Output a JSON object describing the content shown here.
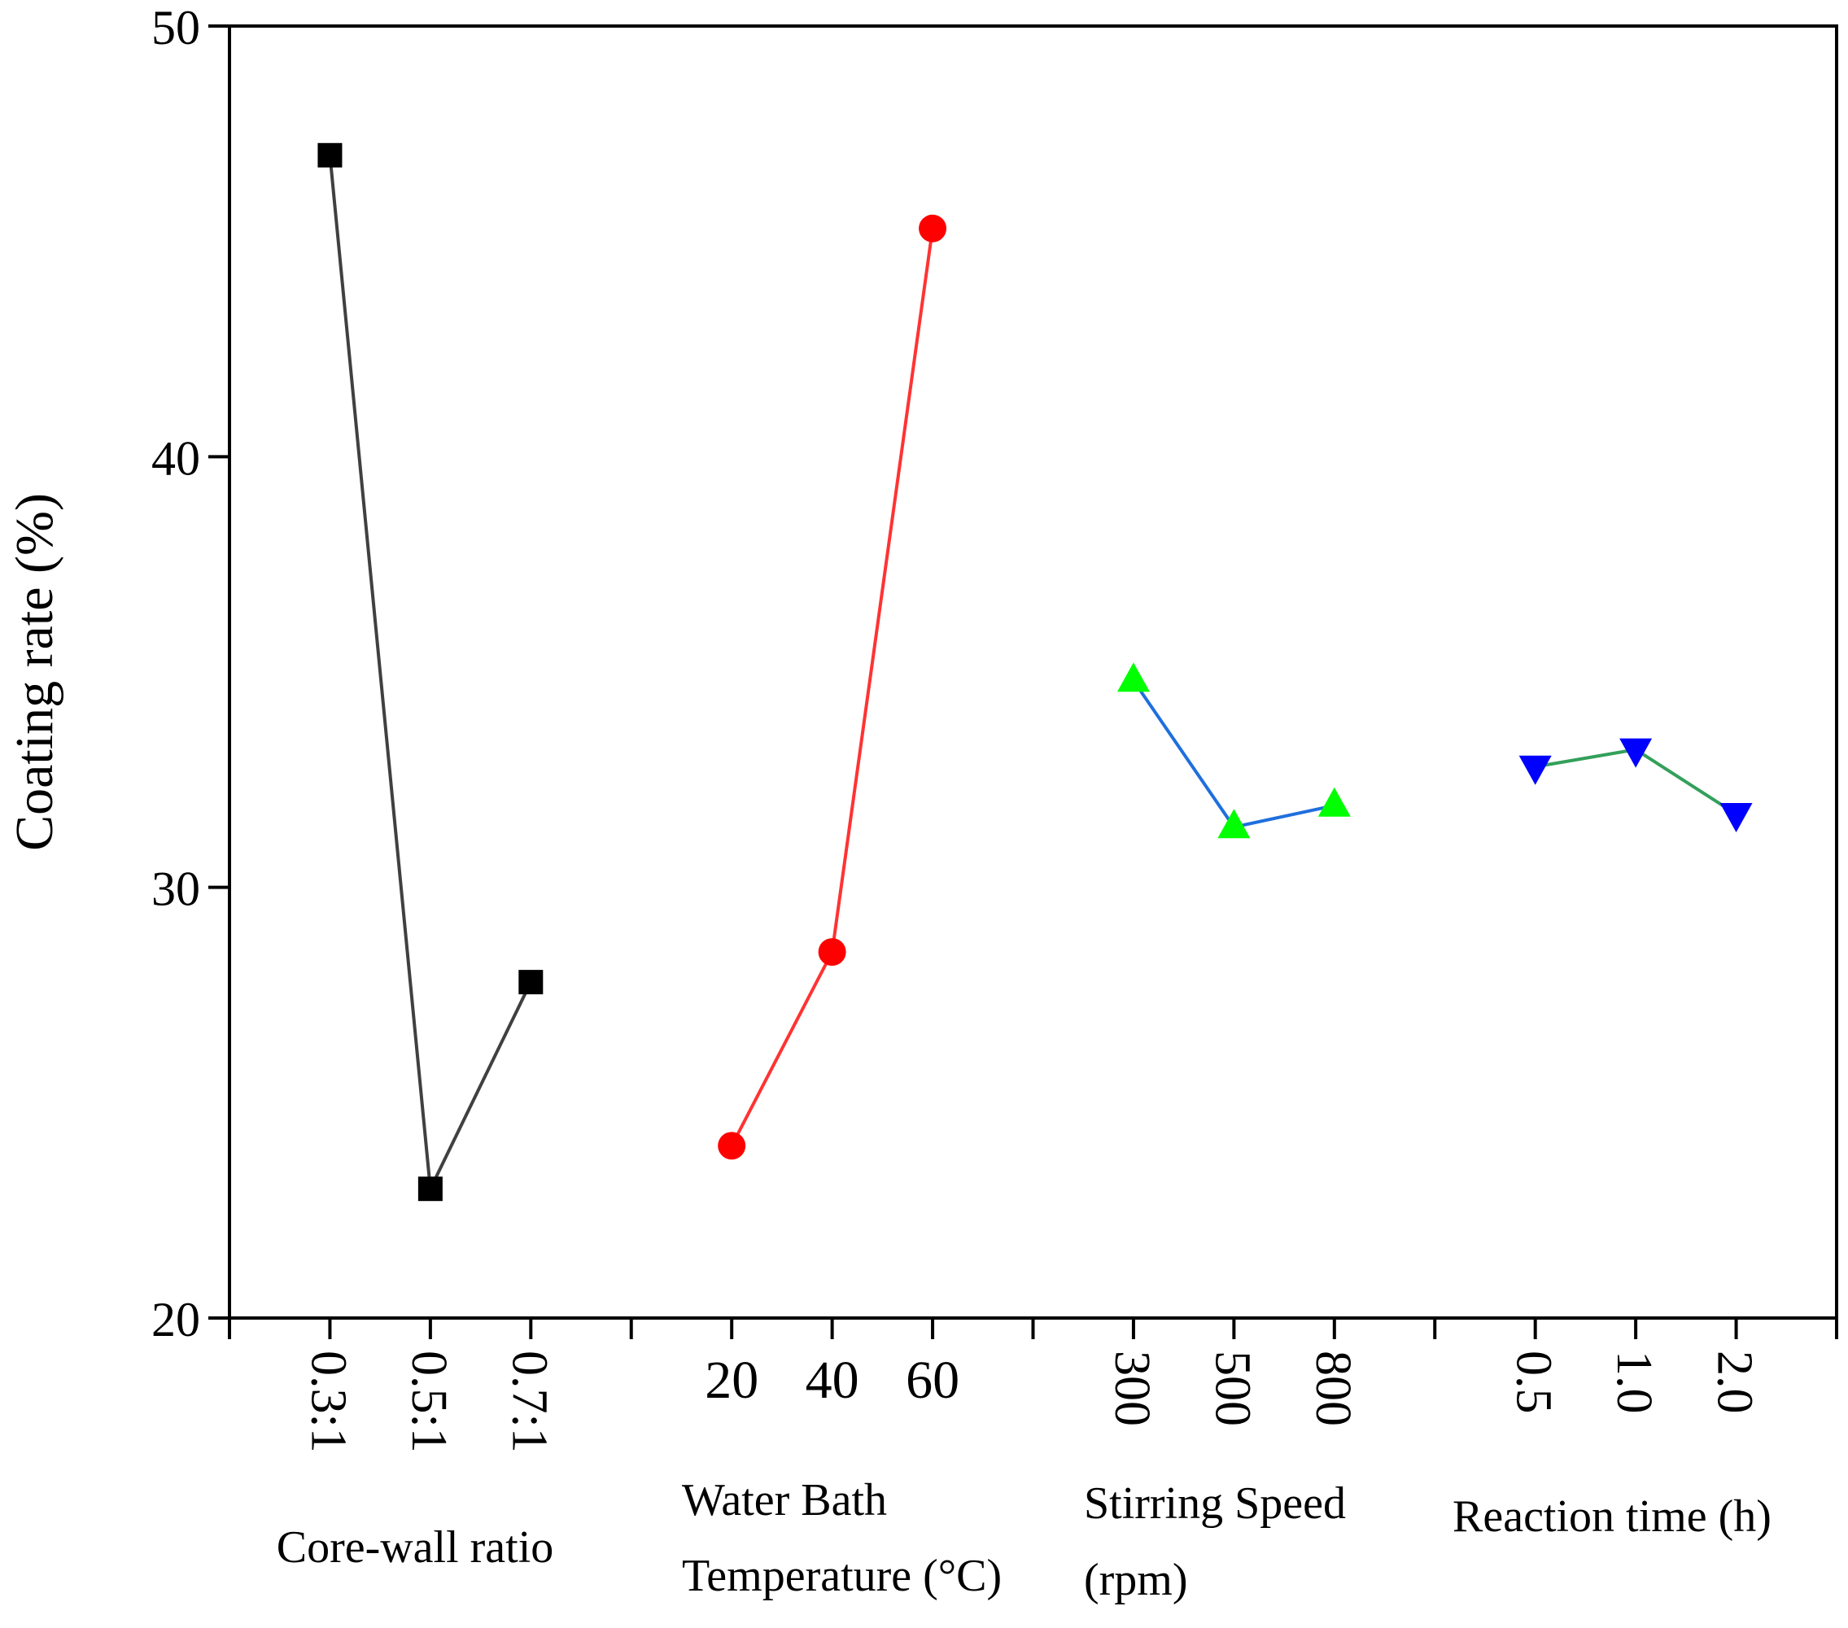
{
  "chart_data": {
    "type": "line",
    "title": "",
    "ylabel": "Coating rate (%)",
    "ylim": [
      20,
      50
    ],
    "yticks": [
      "20",
      "30",
      "40",
      "50"
    ],
    "grid": false,
    "legend": "none",
    "groups": [
      {
        "label_lines": [
          "Core-wall ratio"
        ],
        "categories": [
          "0.3:1",
          "0.5:1",
          "0.7:1"
        ],
        "tick_rotation": "vertical",
        "values": [
          47.0,
          23.0,
          27.8
        ],
        "marker": "square",
        "marker_color": "#000000",
        "line_color": "#404040"
      },
      {
        "label_lines": [
          "Water Bath",
          "Temperature (°C)"
        ],
        "categories": [
          "20",
          "40",
          "60"
        ],
        "tick_rotation": "horizontal",
        "values": [
          24.0,
          28.5,
          45.3
        ],
        "marker": "circle",
        "marker_color": "#ff0000",
        "line_color": "#ff3333"
      },
      {
        "label_lines": [
          "Stirring Speed",
          "(rpm)"
        ],
        "categories": [
          "300",
          "500",
          "800"
        ],
        "tick_rotation": "vertical",
        "values": [
          34.8,
          31.4,
          31.9
        ],
        "marker": "triangle-up",
        "marker_color": "#00ff00",
        "line_color": "#1f6fdd"
      },
      {
        "label_lines": [
          "Reaction time (h)"
        ],
        "categories": [
          "0.5",
          "1.0",
          "2.0"
        ],
        "tick_rotation": "vertical",
        "values": [
          32.8,
          33.2,
          31.7
        ],
        "marker": "triangle-down",
        "marker_color": "#0000ff",
        "line_color": "#33a05a"
      }
    ]
  }
}
